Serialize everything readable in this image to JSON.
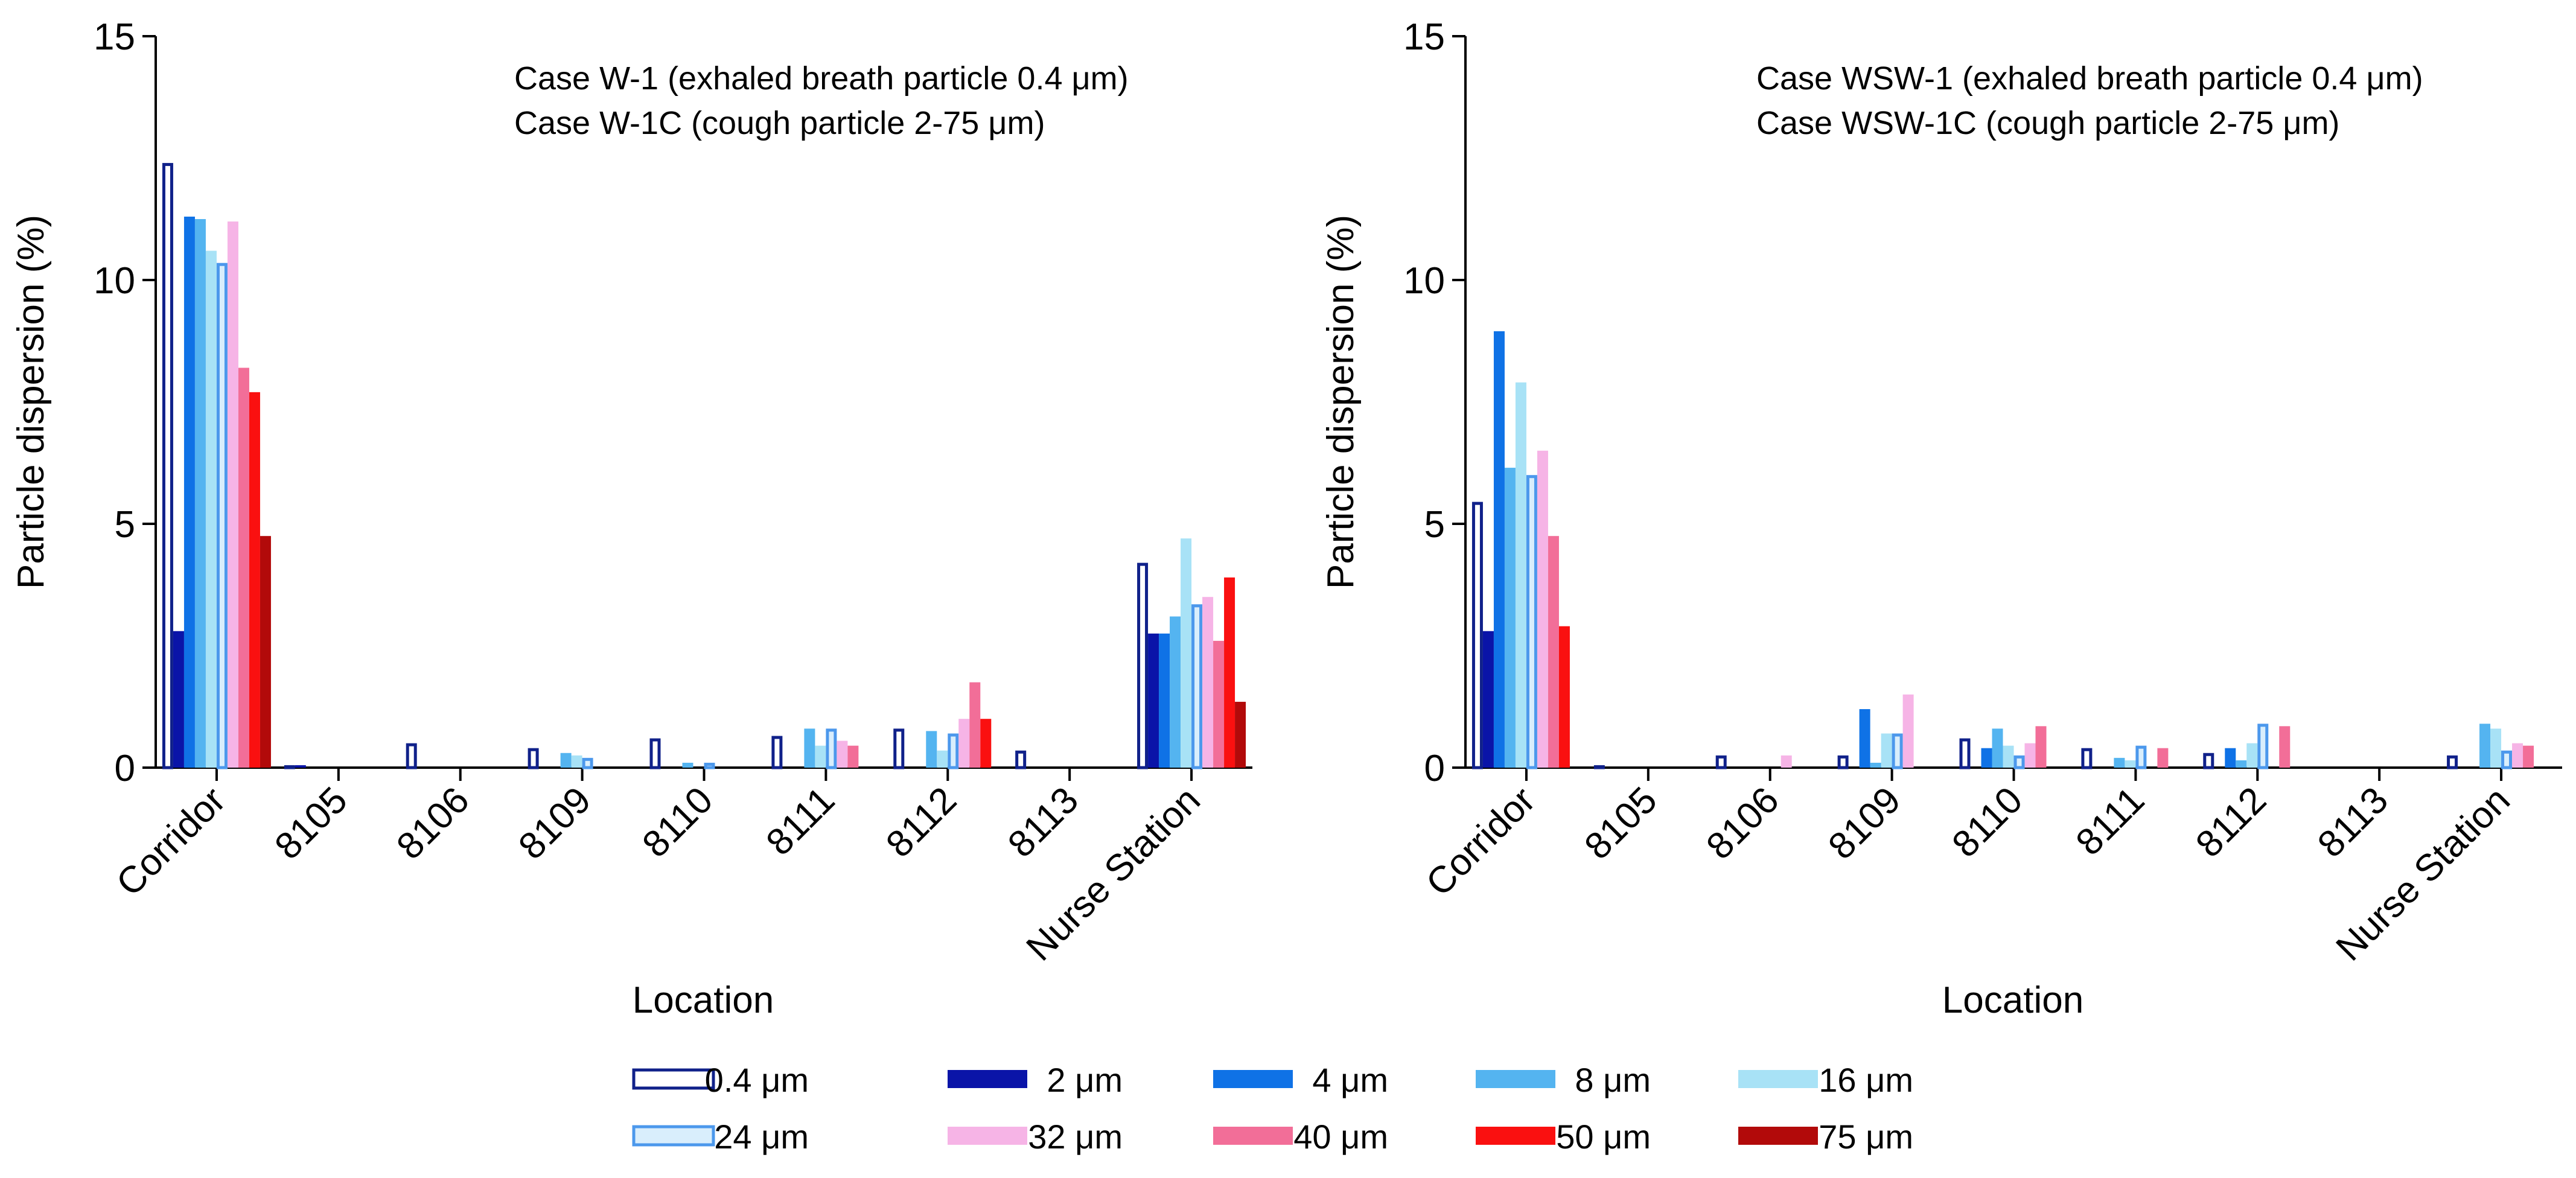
{
  "chart_data": [
    {
      "type": "bar",
      "panel": "left",
      "annotation": [
        "Case W-1 (exhaled breath particle 0.4 μm)",
        "Case W-1C (cough particle 2-75 μm)"
      ],
      "xlabel": "Location",
      "ylabel": "Particle dispersion (%)",
      "ylim": [
        0,
        15
      ],
      "yticks": [
        "0",
        "5",
        "10",
        "15"
      ],
      "categories": [
        "Corridor",
        "8105",
        "8106",
        "8109",
        "8110",
        "8111",
        "8112",
        "8113",
        "Nurse Station"
      ],
      "series": [
        {
          "name": "0.4 μm",
          "values": [
            12.4,
            0.05,
            0.5,
            0.4,
            0.6,
            0.65,
            0.8,
            0.35,
            4.2
          ]
        },
        {
          "name": "2 μm",
          "values": [
            2.8,
            0.05,
            0,
            0,
            0,
            0,
            0,
            0,
            2.75
          ]
        },
        {
          "name": "4 μm",
          "values": [
            11.3,
            0,
            0,
            0,
            0,
            0,
            0,
            0,
            2.75
          ]
        },
        {
          "name": "8 μm",
          "values": [
            11.25,
            0,
            0,
            0.3,
            0.1,
            0.8,
            0.75,
            0,
            3.1
          ]
        },
        {
          "name": "16 μm",
          "values": [
            10.6,
            0,
            0,
            0.25,
            0,
            0.45,
            0.35,
            0,
            4.7
          ]
        },
        {
          "name": "24 μm",
          "values": [
            10.35,
            0,
            0,
            0.2,
            0.1,
            0.8,
            0.7,
            0,
            3.35
          ]
        },
        {
          "name": "32 μm",
          "values": [
            11.2,
            0,
            0,
            0,
            0,
            0.55,
            1.0,
            0,
            3.5
          ]
        },
        {
          "name": "40 μm",
          "values": [
            8.2,
            0,
            0,
            0,
            0,
            0.45,
            1.75,
            0,
            2.6
          ]
        },
        {
          "name": "50 μm",
          "values": [
            7.7,
            0,
            0,
            0,
            0,
            0,
            1.0,
            0,
            3.9
          ]
        },
        {
          "name": "75 μm",
          "values": [
            4.75,
            0,
            0,
            0,
            0,
            0,
            0,
            0,
            1.35
          ]
        }
      ]
    },
    {
      "type": "bar",
      "panel": "right",
      "annotation": [
        "Case WSW-1 (exhaled breath particle 0.4 μm)",
        "Case WSW-1C (cough particle 2-75 μm)"
      ],
      "xlabel": "Location",
      "ylabel": "Particle dispersion (%)",
      "ylim": [
        0,
        15
      ],
      "yticks": [
        "0",
        "5",
        "10",
        "15"
      ],
      "categories": [
        "Corridor",
        "8105",
        "8106",
        "8109",
        "8110",
        "8111",
        "8112",
        "8113",
        "Nurse Station"
      ],
      "series": [
        {
          "name": "0.4 μm",
          "values": [
            5.45,
            0.05,
            0.25,
            0.25,
            0.6,
            0.4,
            0.3,
            0,
            0.25
          ]
        },
        {
          "name": "2 μm",
          "values": [
            2.8,
            0,
            0,
            0,
            0,
            0,
            0,
            0,
            0
          ]
        },
        {
          "name": "4 μm",
          "values": [
            8.95,
            0,
            0,
            1.2,
            0.4,
            0,
            0.4,
            0,
            0
          ]
        },
        {
          "name": "8 μm",
          "values": [
            6.15,
            0,
            0,
            0.1,
            0.8,
            0.2,
            0.15,
            0,
            0.9
          ]
        },
        {
          "name": "16 μm",
          "values": [
            7.9,
            0,
            0,
            0.7,
            0.45,
            0.15,
            0.5,
            0,
            0.8
          ]
        },
        {
          "name": "24 μm",
          "values": [
            6.0,
            0,
            0,
            0.7,
            0.25,
            0.45,
            0.9,
            0,
            0.35
          ]
        },
        {
          "name": "32 μm",
          "values": [
            6.5,
            0,
            0.25,
            1.5,
            0.5,
            0,
            0,
            0,
            0.5
          ]
        },
        {
          "name": "40 μm",
          "values": [
            4.75,
            0,
            0,
            0,
            0.85,
            0.4,
            0.85,
            0,
            0.45
          ]
        },
        {
          "name": "50 μm",
          "values": [
            2.9,
            0,
            0,
            0,
            0,
            0,
            0,
            0,
            0
          ]
        },
        {
          "name": "75 μm",
          "values": [
            0,
            0,
            0,
            0,
            0,
            0,
            0,
            0,
            0
          ]
        }
      ]
    }
  ],
  "legend": {
    "items": [
      {
        "label": "0.4 μm",
        "color": "#10218a",
        "style": "outline"
      },
      {
        "label": "2 μm",
        "color": "#0a14a8",
        "style": "filled"
      },
      {
        "label": "4 μm",
        "color": "#0f72e6",
        "style": "filled"
      },
      {
        "label": "8 μm",
        "color": "#54b4f0",
        "style": "filled"
      },
      {
        "label": "16 μm",
        "color": "#a8e2f6",
        "style": "filled"
      },
      {
        "label": "24 μm",
        "color": "#4c98ec",
        "style": "outline-light"
      },
      {
        "label": "32 μm",
        "color": "#f6b4e6",
        "style": "filled"
      },
      {
        "label": "40 μm",
        "color": "#f26e98",
        "style": "filled"
      },
      {
        "label": "50 μm",
        "color": "#fa1010",
        "style": "filled"
      },
      {
        "label": "75 μm",
        "color": "#b20a0a",
        "style": "filled"
      }
    ]
  }
}
